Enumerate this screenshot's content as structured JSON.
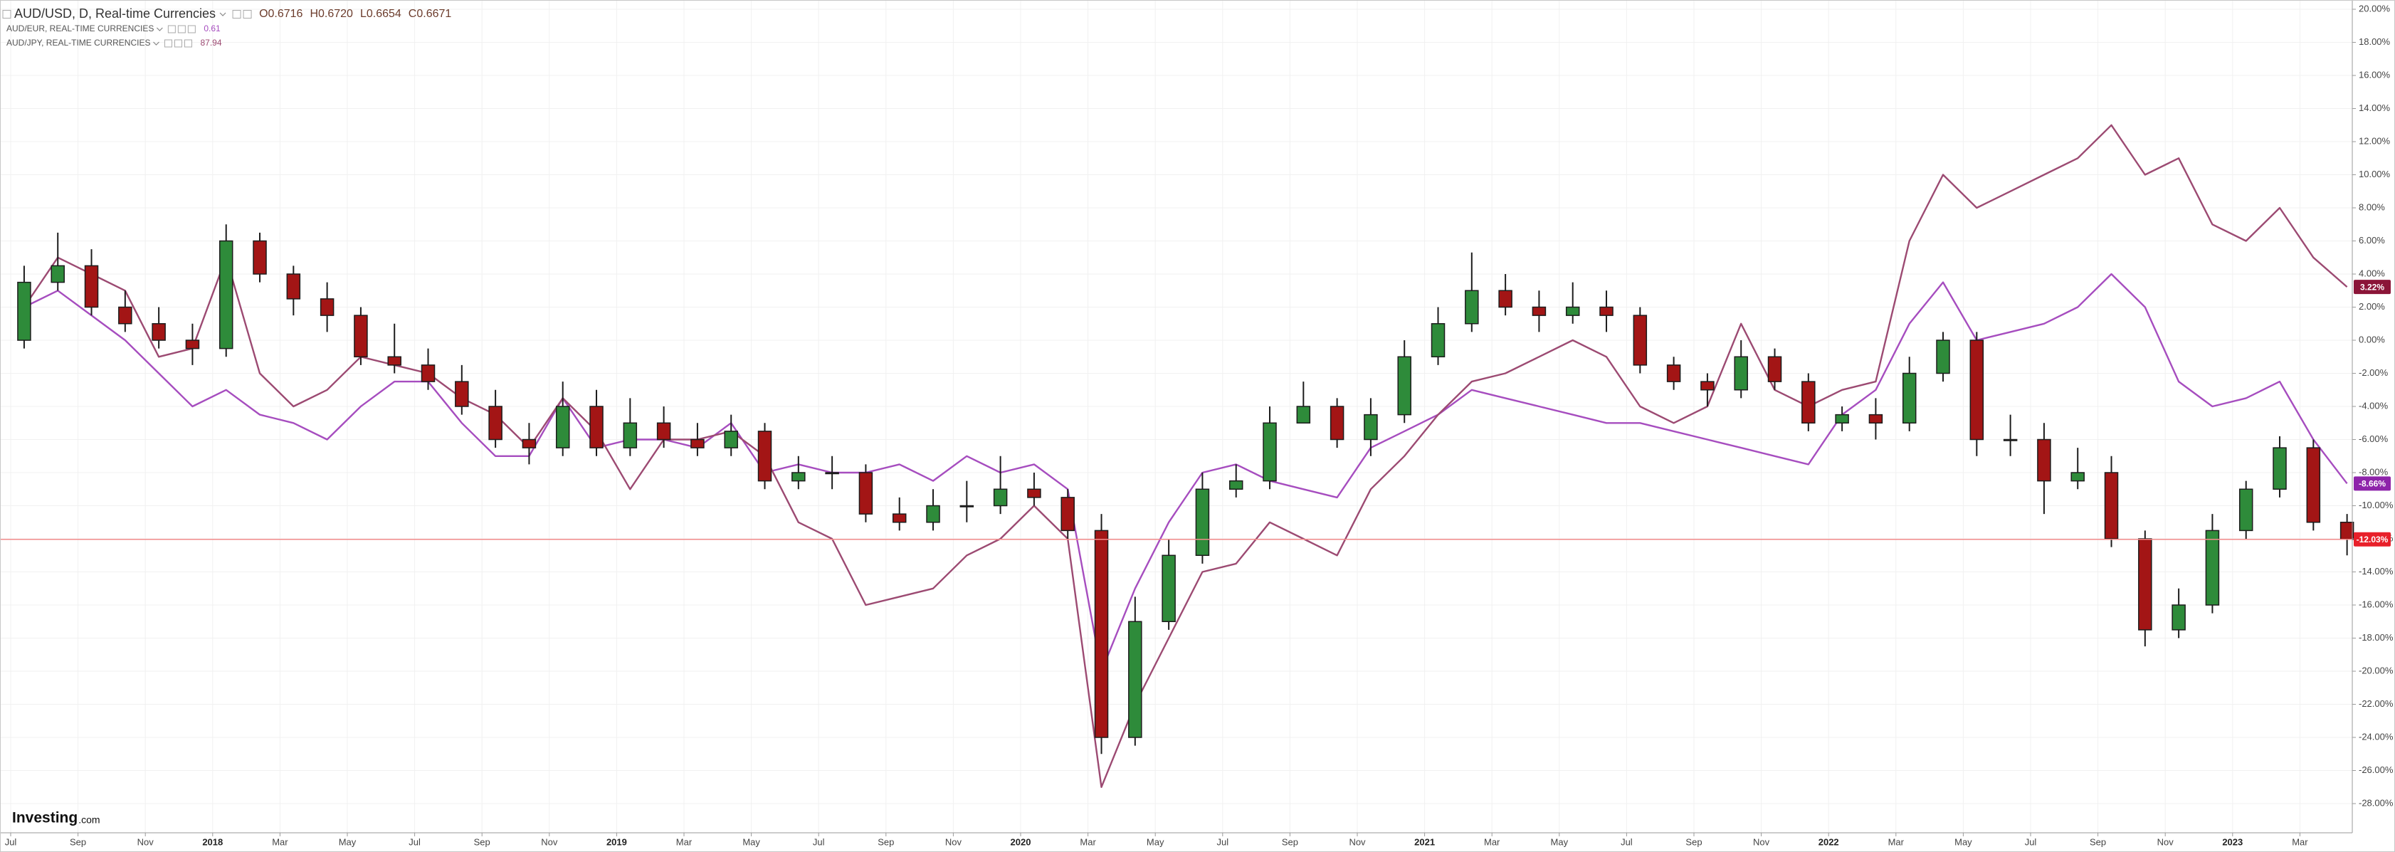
{
  "chart_data": {
    "type": "candlestick",
    "title": "AUD/USD, D, Real-time Currencies",
    "ohlc_text": [
      "O0.6716",
      "H0.6720",
      "L0.6654",
      "C0.6671"
    ],
    "branding": {
      "name": "Investing",
      "suffix": ".com"
    },
    "x": [
      "2017-07",
      "2017-08",
      "2017-09",
      "2017-10",
      "2017-11",
      "2017-12",
      "2018-01",
      "2018-02",
      "2018-03",
      "2018-04",
      "2018-05",
      "2018-06",
      "2018-07",
      "2018-08",
      "2018-09",
      "2018-10",
      "2018-11",
      "2018-12",
      "2019-01",
      "2019-02",
      "2019-03",
      "2019-04",
      "2019-05",
      "2019-06",
      "2019-07",
      "2019-08",
      "2019-09",
      "2019-10",
      "2019-11",
      "2019-12",
      "2020-01",
      "2020-02",
      "2020-03",
      "2020-04",
      "2020-05",
      "2020-06",
      "2020-07",
      "2020-08",
      "2020-09",
      "2020-10",
      "2020-11",
      "2020-12",
      "2021-01",
      "2021-02",
      "2021-03",
      "2021-04",
      "2021-05",
      "2021-06",
      "2021-07",
      "2021-08",
      "2021-09",
      "2021-10",
      "2021-11",
      "2021-12",
      "2022-01",
      "2022-02",
      "2022-03",
      "2022-04",
      "2022-05",
      "2022-06",
      "2022-07",
      "2022-08",
      "2022-09",
      "2022-10",
      "2022-11",
      "2022-12",
      "2023-01",
      "2023-02",
      "2023-03",
      "2023-04"
    ],
    "ohlc": {
      "up_color": "#2e8b3a",
      "down_color": "#a31515",
      "outline_color": "#1c1c1c",
      "open": [
        0,
        3.5,
        4.5,
        2,
        1,
        0,
        -0.5,
        6,
        4,
        2.5,
        1.5,
        -1,
        -1.5,
        -2.5,
        -4,
        -6,
        -6.5,
        -4,
        -6.5,
        -5,
        -6,
        -6.5,
        -5.5,
        -8.5,
        -8,
        -8,
        -10.5,
        -11,
        -10,
        -10,
        -9,
        -9.5,
        -11.5,
        -24,
        -17,
        -13,
        -9,
        -8.5,
        -5,
        -4,
        -6,
        -4.5,
        -1,
        1,
        3,
        2,
        1.5,
        2,
        1.5,
        -1.5,
        -2.5,
        -3,
        -1,
        -2.5,
        -5,
        -4.5,
        -5,
        -2,
        0,
        -6,
        -6,
        -8.5,
        -8,
        -12,
        -17.5,
        -16,
        -11.5,
        -9,
        -6.5,
        -11
      ],
      "high": [
        4.5,
        6.5,
        5.5,
        3,
        2,
        1,
        7,
        6.5,
        4.5,
        3.5,
        2,
        1,
        -0.5,
        -1.5,
        -3,
        -5,
        -2.5,
        -3,
        -3.5,
        -4,
        -5,
        -4.5,
        -5,
        -7,
        -7,
        -7.5,
        -9.5,
        -9,
        -8.5,
        -7,
        -8,
        -9,
        -10.5,
        -15.5,
        -12,
        -8,
        -7.5,
        -4,
        -2.5,
        -3.5,
        -3.5,
        0,
        2,
        5.3,
        4,
        3,
        3.5,
        3,
        2,
        -1,
        -2,
        0,
        -0.5,
        -2,
        -4,
        -3.5,
        -1,
        0.5,
        0.5,
        -4.5,
        -5,
        -6.5,
        -7,
        -11.5,
        -15,
        -10.5,
        -8.5,
        -5.8,
        -6,
        -10.5
      ],
      "low": [
        -0.5,
        3,
        1.5,
        0.5,
        -0.5,
        -1.5,
        -1,
        3.5,
        1.5,
        0.5,
        -1.5,
        -2,
        -3,
        -4.5,
        -6.5,
        -7.5,
        -7,
        -7,
        -7,
        -6.5,
        -7,
        -7,
        -9,
        -9,
        -9,
        -11,
        -11.5,
        -11.5,
        -11,
        -10.5,
        -10,
        -12,
        -25,
        -24.5,
        -17.5,
        -13.5,
        -9.5,
        -9,
        -5,
        -6.5,
        -7,
        -5,
        -1.5,
        0.5,
        1.5,
        0.5,
        1,
        0.5,
        -2,
        -3,
        -4,
        -3.5,
        -3,
        -5.5,
        -5.5,
        -6,
        -5.5,
        -2.5,
        -7,
        -7,
        -10.5,
        -9,
        -12.5,
        -18.5,
        -18,
        -16.5,
        -12,
        -9.5,
        -11.5,
        -13
      ],
      "close": [
        3.5,
        4.5,
        2,
        1,
        0,
        -0.5,
        6,
        4,
        2.5,
        1.5,
        -1,
        -1.5,
        -2.5,
        -4,
        -6,
        -6.5,
        -4,
        -6.5,
        -5,
        -6,
        -6.5,
        -5.5,
        -8.5,
        -8,
        -8,
        -10.5,
        -11,
        -10,
        -10,
        -9,
        -9.5,
        -11.5,
        -24,
        -17,
        -13,
        -9,
        -8.5,
        -5,
        -4,
        -6,
        -4.5,
        -1,
        1,
        3,
        2,
        1.5,
        2,
        1.5,
        -1.5,
        -2.5,
        -3,
        -1,
        -2.5,
        -5,
        -4.5,
        -5,
        -2,
        0,
        -6,
        -6,
        -8.5,
        -8,
        -12,
        -17.5,
        -16,
        -11.5,
        -9,
        -6.5,
        -11,
        -12.03
      ],
      "end_label": "-12.03%",
      "end_color": "#e8202a",
      "level_line_color": "#f28b8b"
    },
    "series": [
      {
        "name": "AUD/EUR, REAL-TIME CURRENCIES",
        "last_price": "0.61",
        "color": "#a64dbf",
        "end_label": "-8.66%",
        "end_color": "#8e24aa",
        "values": [
          2,
          3,
          1.5,
          0,
          -2,
          -4,
          -3,
          -4.5,
          -5,
          -6,
          -4,
          -2.5,
          -2.5,
          -5,
          -7,
          -7,
          -3.5,
          -6.5,
          -6,
          -6,
          -6.5,
          -5,
          -8,
          -7.5,
          -8,
          -8,
          -7.5,
          -8.5,
          -7,
          -8,
          -7.5,
          -9,
          -20,
          -15,
          -11,
          -8,
          -7.5,
          -8.5,
          -9,
          -9.5,
          -6.5,
          -5.5,
          -4.5,
          -3,
          -3.5,
          -4,
          -4.5,
          -5,
          -5,
          -5.5,
          -6,
          -6.5,
          -7,
          -7.5,
          -4.5,
          -3,
          1,
          3.5,
          0,
          0.5,
          1,
          2,
          4,
          2,
          -2.5,
          -4,
          -3.5,
          -2.5,
          -6,
          -8.66
        ]
      },
      {
        "name": "AUD/JPY, REAL-TIME CURRENCIES",
        "last_price": "87.94",
        "color": "#9c4a72",
        "end_label": "3.22%",
        "end_color": "#8b1538",
        "values": [
          2,
          5,
          4,
          3,
          -1,
          -0.5,
          5,
          -2,
          -4,
          -3,
          -1,
          -1.5,
          -2,
          -3.5,
          -4.5,
          -6.5,
          -3.5,
          -5.5,
          -9,
          -6,
          -6,
          -5.5,
          -7,
          -11,
          -12,
          -16,
          -15.5,
          -15,
          -13,
          -12,
          -10,
          -12,
          -27,
          -22,
          -18,
          -14,
          -13.5,
          -11,
          -12,
          -13,
          -9,
          -7,
          -4.5,
          -2.5,
          -2,
          -1,
          0,
          -1,
          -4,
          -5,
          -4,
          1,
          -3,
          -4,
          -3,
          -2.5,
          6,
          10,
          8,
          9,
          10,
          11,
          13,
          10,
          11,
          7,
          6,
          8,
          5,
          3.22
        ]
      }
    ],
    "ylim": [
      -29.8,
      20.6
    ],
    "yticks": [
      {
        "value": 20,
        "label": "20.00%"
      },
      {
        "value": 18,
        "label": "18.00%"
      },
      {
        "value": 16,
        "label": "16.00%"
      },
      {
        "value": 14,
        "label": "14.00%"
      },
      {
        "value": 12,
        "label": "12.00%"
      },
      {
        "value": 10,
        "label": "10.00%"
      },
      {
        "value": 8,
        "label": "8.00%"
      },
      {
        "value": 6,
        "label": "6.00%"
      },
      {
        "value": 4,
        "label": "4.00%"
      },
      {
        "value": 2,
        "label": "2.00%"
      },
      {
        "value": 0,
        "label": "0.00%"
      },
      {
        "value": -2,
        "label": "-2.00%"
      },
      {
        "value": -4,
        "label": "-4.00%"
      },
      {
        "value": -6,
        "label": "-6.00%"
      },
      {
        "value": -8,
        "label": "-8.00%"
      },
      {
        "value": -10,
        "label": "-10.00%"
      },
      {
        "value": -12,
        "label": "-12.00%"
      },
      {
        "value": -14,
        "label": "-14.00%"
      },
      {
        "value": -16,
        "label": "-16.00%"
      },
      {
        "value": -18,
        "label": "-18.00%"
      },
      {
        "value": -20,
        "label": "-20.00%"
      },
      {
        "value": -22,
        "label": "-22.00%"
      },
      {
        "value": -24,
        "label": "-24.00%"
      },
      {
        "value": -26,
        "label": "-26.00%"
      },
      {
        "value": -28,
        "label": "-28.00%"
      }
    ],
    "xticks": [
      {
        "value": "2017-07",
        "label": "Jul"
      },
      {
        "value": "2017-09",
        "label": "Sep"
      },
      {
        "value": "2017-11",
        "label": "Nov"
      },
      {
        "value": "2018-01",
        "label": "2018"
      },
      {
        "value": "2018-03",
        "label": "Mar"
      },
      {
        "value": "2018-05",
        "label": "May"
      },
      {
        "value": "2018-07",
        "label": "Jul"
      },
      {
        "value": "2018-09",
        "label": "Sep"
      },
      {
        "value": "2018-11",
        "label": "Nov"
      },
      {
        "value": "2019-01",
        "label": "2019"
      },
      {
        "value": "2019-03",
        "label": "Mar"
      },
      {
        "value": "2019-05",
        "label": "May"
      },
      {
        "value": "2019-07",
        "label": "Jul"
      },
      {
        "value": "2019-09",
        "label": "Sep"
      },
      {
        "value": "2019-11",
        "label": "Nov"
      },
      {
        "value": "2020-01",
        "label": "2020"
      },
      {
        "value": "2020-03",
        "label": "Mar"
      },
      {
        "value": "2020-05",
        "label": "May"
      },
      {
        "value": "2020-07",
        "label": "Jul"
      },
      {
        "value": "2020-09",
        "label": "Sep"
      },
      {
        "value": "2020-11",
        "label": "Nov"
      },
      {
        "value": "2021-01",
        "label": "2021"
      },
      {
        "value": "2021-03",
        "label": "Mar"
      },
      {
        "value": "2021-05",
        "label": "May"
      },
      {
        "value": "2021-07",
        "label": "Jul"
      },
      {
        "value": "2021-09",
        "label": "Sep"
      },
      {
        "value": "2021-11",
        "label": "Nov"
      },
      {
        "value": "2022-01",
        "label": "2022"
      },
      {
        "value": "2022-03",
        "label": "Mar"
      },
      {
        "value": "2022-05",
        "label": "May"
      },
      {
        "value": "2022-07",
        "label": "Jul"
      },
      {
        "value": "2022-09",
        "label": "Sep"
      },
      {
        "value": "2022-11",
        "label": "Nov"
      },
      {
        "value": "2023-01",
        "label": "2023"
      },
      {
        "value": "2023-03",
        "label": "Mar"
      }
    ],
    "grid": true
  }
}
